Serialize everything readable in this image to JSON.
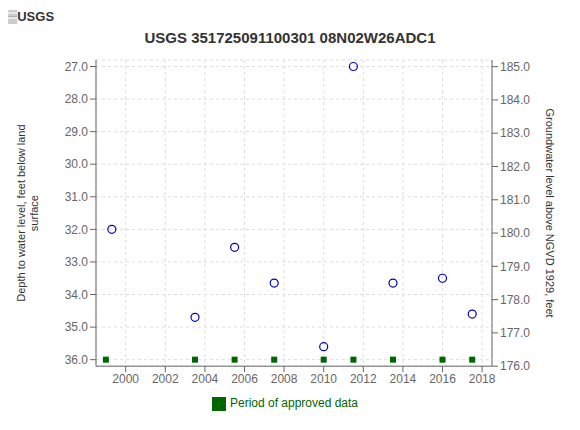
{
  "chart_data": {
    "type": "scatter",
    "title": "USGS 351725091100301 08N02W26ADC1",
    "annotations": [
      "▒USGS"
    ],
    "x_label": null,
    "y_label": "Depth to water level, feet below land\nsurface",
    "y2_label": "Groundwater level above NGVD 1929, feet",
    "series": [
      {
        "color": "#0000bb",
        "marker": "circle",
        "x": [
          1999.3,
          2003.5,
          2005.5,
          2007.5,
          2010.0,
          2011.5,
          2013.5,
          2016.0,
          2017.5
        ],
        "values": [
          32.0,
          34.7,
          32.55,
          33.65,
          35.6,
          27.0,
          33.65,
          33.5,
          34.6
        ]
      },
      {
        "name": "Period of approved data",
        "color": "#006600",
        "marker": "square",
        "x": [
          1999.0,
          2003.5,
          2005.5,
          2007.5,
          2010.0,
          2011.5,
          2013.5,
          2016.0,
          2017.5
        ],
        "values": [
          36.0,
          36.0,
          36.0,
          36.0,
          36.0,
          36.0,
          36.0,
          36.0,
          36.0
        ]
      }
    ],
    "xlim": [
      1998.5,
      2018.5
    ],
    "xticks": [
      2000,
      2002,
      2004,
      2006,
      2008,
      2010,
      2012,
      2014,
      2016,
      2018
    ],
    "ylim": [
      36.2,
      26.8
    ],
    "yticks": [
      {
        "value": 27.0,
        "label": "27.0"
      },
      {
        "value": 28.0,
        "label": "28.0"
      },
      {
        "value": 29.0,
        "label": "29.0"
      },
      {
        "value": 30.0,
        "label": "30.0"
      },
      {
        "value": 31.0,
        "label": "31.0"
      },
      {
        "value": 32.0,
        "label": "32.0"
      },
      {
        "value": 33.0,
        "label": "33.0"
      },
      {
        "value": 34.0,
        "label": "34.0"
      },
      {
        "value": 35.0,
        "label": "35.0"
      },
      {
        "value": 36.0,
        "label": "36.0"
      }
    ],
    "y2lim": [
      176.0,
      185.2
    ],
    "y2ticks": [
      {
        "value": 185.0,
        "label": "185.0"
      },
      {
        "value": 184.0,
        "label": "184.0"
      },
      {
        "value": 183.0,
        "label": "183.0"
      },
      {
        "value": 182.0,
        "label": "182.0"
      },
      {
        "value": 181.0,
        "label": "181.0"
      },
      {
        "value": 180.0,
        "label": "180.0"
      },
      {
        "value": 179.0,
        "label": "179.0"
      },
      {
        "value": 178.0,
        "label": "178.0"
      },
      {
        "value": 177.0,
        "label": "177.0"
      },
      {
        "value": 176.0,
        "label": "176.0"
      }
    ],
    "grid": true,
    "legend": "bottom"
  }
}
